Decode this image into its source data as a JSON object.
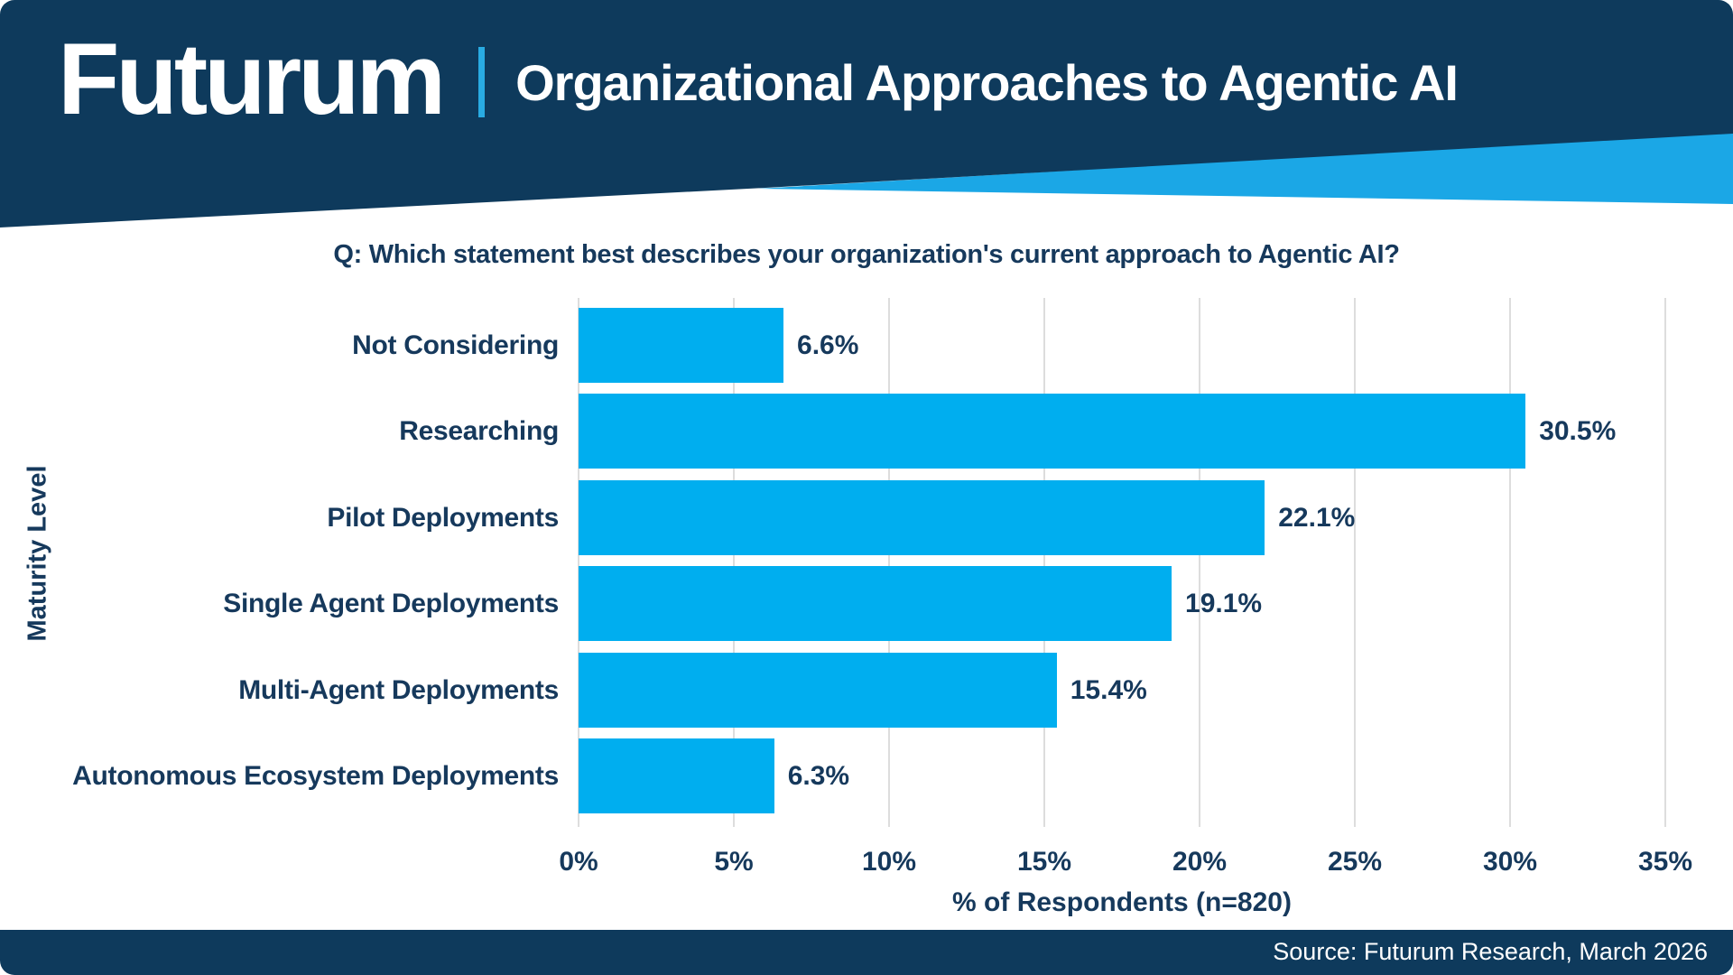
{
  "header": {
    "logo_text": "Futurum",
    "title": "Organizational Approaches to Agentic AI"
  },
  "question": {
    "text": "Q: Which statement best describes your organization's current approach to Agentic AI?"
  },
  "chart_data": {
    "type": "bar",
    "orientation": "horizontal",
    "categories": [
      "Not Considering",
      "Researching",
      "Pilot Deployments",
      "Single Agent Deployments",
      "Multi-Agent Deployments",
      "Autonomous Ecosystem Deployments"
    ],
    "values": [
      6.6,
      30.5,
      22.1,
      19.1,
      15.4,
      6.3
    ],
    "value_labels": [
      "6.6%",
      "30.5%",
      "22.1%",
      "19.1%",
      "15.4%",
      "6.3%"
    ],
    "xlabel": "% of Respondents (n=820)",
    "ylabel": "Maturity Level",
    "xlim": [
      0,
      35
    ],
    "xticks": [
      0,
      5,
      10,
      15,
      20,
      25,
      30,
      35
    ],
    "xtick_labels": [
      "0%",
      "5%",
      "10%",
      "15%",
      "20%",
      "25%",
      "30%",
      "35%"
    ],
    "grid": "vertical-gridlines-on",
    "legend": "none"
  },
  "footer": {
    "source_text": "Source: Futurum Research, March 2026"
  },
  "colors": {
    "navy": "#0E3A5C",
    "accent_cyan": "#1BA7E6",
    "bar_cyan": "#00AEEF",
    "divider_cyan": "#29ABE2",
    "text_navy": "#16395C",
    "gridline": "#DDDDDD",
    "white": "#FFFFFF"
  }
}
